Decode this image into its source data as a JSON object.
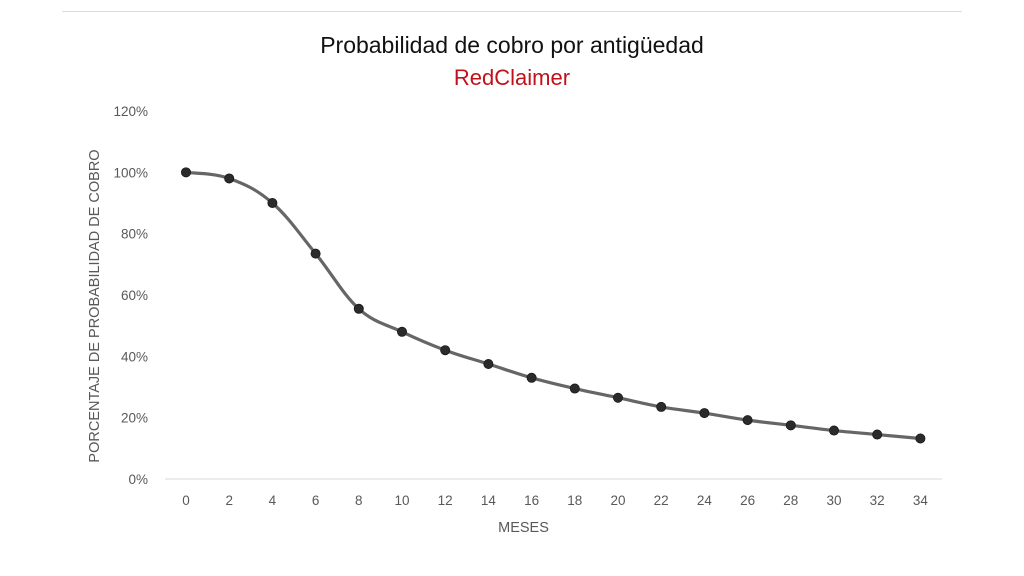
{
  "chart_data": {
    "type": "line",
    "title": "Probabilidad de cobro por antigüedad",
    "subtitle": "RedClaimer",
    "xlabel": "MESES",
    "ylabel": "PORCENTAJE DE PROBABILIDAD DE COBRO",
    "x": [
      0,
      2,
      4,
      6,
      8,
      10,
      12,
      14,
      16,
      18,
      20,
      22,
      24,
      26,
      28,
      30,
      32,
      34
    ],
    "x_tick_labels": [
      "0",
      "2",
      "4",
      "6",
      "8",
      "10",
      "12",
      "14",
      "16",
      "18",
      "20",
      "22",
      "24",
      "26",
      "28",
      "30",
      "32",
      "34"
    ],
    "series": [
      {
        "values": [
          100,
          98,
          90,
          73.5,
          55.5,
          48,
          42,
          37.5,
          33,
          29.5,
          26.5,
          23.5,
          21.5,
          19.2,
          17.5,
          15.8,
          14.5,
          13.2
        ]
      }
    ],
    "y_tick_labels": [
      "0%",
      "20%",
      "40%",
      "60%",
      "80%",
      "100%",
      "120%"
    ],
    "y_ticks": [
      0,
      20,
      40,
      60,
      80,
      100,
      120
    ],
    "ylim": [
      0,
      120
    ],
    "grid": false,
    "legend": "none",
    "colors": {
      "line": "#666666",
      "marker": "#2b2b2b",
      "subtitle": "#c0121a",
      "axis": "#d9d9d9"
    }
  }
}
